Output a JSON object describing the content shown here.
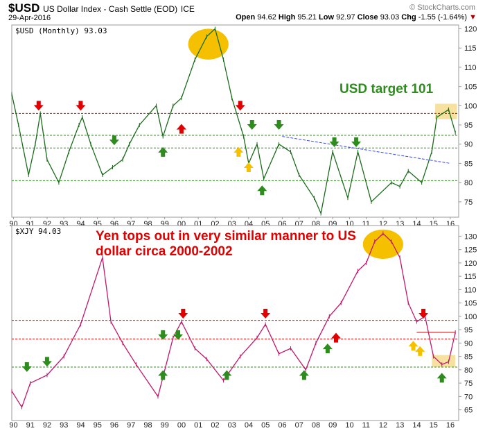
{
  "header": {
    "symbol": "$USD",
    "name": "US Dollar Index - Cash Settle (EOD)",
    "exchange": "ICE",
    "date": "29-Apr-2016",
    "open_label": "Open",
    "open": "94.62",
    "high_label": "High",
    "high": "95.21",
    "low_label": "Low",
    "low": "92.97",
    "close_label": "Close",
    "close": "93.03",
    "chg_label": "Chg",
    "chg": "-1.55 (-1.64%)",
    "watermark": "© StockCharts.com"
  },
  "colors": {
    "usd": "#1a6b1a",
    "xjy": "#c0186a",
    "orange": "#f5c000",
    "red": "#e00000",
    "green": "#2e8b1e",
    "yellow": "#f5c000",
    "blue": "#3344ff"
  },
  "chart_data": [
    {
      "type": "line",
      "title": "$USD (Monthly) 93.03",
      "annotation": "USD target 101",
      "ylim": [
        71,
        121
      ],
      "xlim": [
        1989.9,
        2016.5
      ],
      "yticks": [
        75,
        80,
        85,
        90,
        95,
        100,
        105,
        110,
        115,
        120
      ],
      "xticks": [
        "90",
        "91",
        "92",
        "93",
        "94",
        "95",
        "96",
        "97",
        "98",
        "99",
        "00",
        "01",
        "02",
        "03",
        "04",
        "05",
        "06",
        "07",
        "08",
        "09",
        "10",
        "11",
        "12",
        "13",
        "14",
        "15",
        "16"
      ],
      "x": [
        1989.9,
        1990.3,
        1990.9,
        1991.3,
        1991.6,
        1992.0,
        1992.7,
        1993.3,
        1993.9,
        1994.1,
        1994.6,
        1995.3,
        1995.9,
        1996.5,
        1996.9,
        1997.5,
        1998.5,
        1998.9,
        1999.5,
        2000.0,
        2000.8,
        2001.5,
        2002.0,
        2002.5,
        2003.0,
        2003.7,
        2004.0,
        2004.5,
        2004.9,
        2005.8,
        2006.5,
        2007.0,
        2007.9,
        2008.3,
        2009.0,
        2009.9,
        2010.5,
        2011.3,
        2012.5,
        2013.0,
        2013.5,
        2014.3,
        2014.9,
        2015.2,
        2015.9,
        2016.3
      ],
      "values": [
        103,
        95,
        82,
        90,
        98,
        86,
        80,
        88,
        95,
        97,
        90,
        82,
        84,
        86,
        90,
        95,
        100,
        92,
        100,
        102,
        112,
        118,
        120,
        112,
        102,
        92,
        85,
        90,
        81,
        90,
        88,
        82,
        76,
        72,
        88,
        76,
        88,
        75,
        80,
        79,
        83,
        80,
        88,
        97,
        99,
        93
      ],
      "hlines": [
        {
          "value": 98,
          "color": "red"
        },
        {
          "value": 92.3,
          "color": "green"
        },
        {
          "value": 89,
          "color": "green"
        },
        {
          "value": 80.5,
          "color": "green"
        }
      ],
      "trendline": {
        "from": [
          2006,
          92
        ],
        "to": [
          2016,
          85
        ]
      },
      "arrows": [
        {
          "x": 1991.5,
          "y": 100,
          "dir": "down",
          "color": "red"
        },
        {
          "x": 1994.0,
          "y": 100,
          "dir": "down",
          "color": "red"
        },
        {
          "x": 2003.5,
          "y": 100,
          "dir": "down",
          "color": "red"
        },
        {
          "x": 2000.0,
          "y": 94,
          "dir": "up",
          "color": "red"
        },
        {
          "x": 1996.0,
          "y": 91,
          "dir": "down",
          "color": "green"
        },
        {
          "x": 2004.2,
          "y": 95,
          "dir": "down",
          "color": "green"
        },
        {
          "x": 2005.8,
          "y": 95,
          "dir": "down",
          "color": "green"
        },
        {
          "x": 2009.1,
          "y": 90.5,
          "dir": "down",
          "color": "green"
        },
        {
          "x": 2010.4,
          "y": 90.5,
          "dir": "down",
          "color": "green"
        },
        {
          "x": 1998.9,
          "y": 88,
          "dir": "up",
          "color": "green"
        },
        {
          "x": 2004.8,
          "y": 78,
          "dir": "up",
          "color": "green"
        },
        {
          "x": 2003.4,
          "y": 88,
          "dir": "up",
          "color": "yellow"
        },
        {
          "x": 2004.0,
          "y": 84,
          "dir": "up",
          "color": "yellow"
        }
      ],
      "highlights": [
        {
          "shape": "ellipse",
          "x": 2001.6,
          "y": 116,
          "rx": 1.2,
          "ry": 4
        },
        {
          "shape": "box",
          "x": [
            2015.1,
            2016.4
          ],
          "y": [
            96.5,
            100.5
          ]
        }
      ]
    },
    {
      "type": "line",
      "title": "$XJY 94.03",
      "annotation": "Yen tops out in very similar manner to US dollar circa 2000-2002",
      "ylim": [
        61,
        134
      ],
      "xlim": [
        1989.9,
        2016.5
      ],
      "yticks": [
        65,
        70,
        75,
        80,
        85,
        90,
        95,
        100,
        105,
        110,
        115,
        120,
        125,
        130
      ],
      "x": [
        1989.9,
        1990.5,
        1991.0,
        1992.0,
        1993.0,
        1994.0,
        1995.3,
        1995.8,
        1996.5,
        1997.3,
        1998.6,
        1999.5,
        2000.0,
        2000.8,
        2001.5,
        2002.5,
        2003.5,
        2004.5,
        2005.0,
        2005.8,
        2006.5,
        2007.4,
        2008.0,
        2008.8,
        2009.5,
        2010.5,
        2011.0,
        2011.5,
        2012.0,
        2012.5,
        2013.0,
        2013.5,
        2014.0,
        2014.5,
        2015.0,
        2015.5,
        2015.9,
        2016.3
      ],
      "values": [
        72,
        66,
        75,
        78,
        85,
        97,
        122,
        98,
        90,
        82,
        70,
        92,
        98,
        88,
        84,
        76,
        85,
        92,
        97,
        86,
        88,
        80,
        90,
        100,
        105,
        117,
        120,
        128,
        131,
        128,
        122,
        105,
        98,
        100,
        85,
        82,
        83,
        94
      ],
      "hlines": [
        {
          "value": 98.5,
          "color": "red"
        },
        {
          "value": 91.5,
          "color": "red"
        },
        {
          "value": 81,
          "color": "green"
        }
      ],
      "arrows": [
        {
          "x": 1990.8,
          "y": 81,
          "dir": "down",
          "color": "green"
        },
        {
          "x": 1992.0,
          "y": 83,
          "dir": "down",
          "color": "green"
        },
        {
          "x": 1998.9,
          "y": 93,
          "dir": "down",
          "color": "green"
        },
        {
          "x": 1999.8,
          "y": 93,
          "dir": "down",
          "color": "green"
        },
        {
          "x": 1998.9,
          "y": 78,
          "dir": "up",
          "color": "green"
        },
        {
          "x": 2002.7,
          "y": 78,
          "dir": "up",
          "color": "green"
        },
        {
          "x": 2007.3,
          "y": 78,
          "dir": "up",
          "color": "green"
        },
        {
          "x": 2008.7,
          "y": 88,
          "dir": "up",
          "color": "green"
        },
        {
          "x": 2015.5,
          "y": 77,
          "dir": "up",
          "color": "green"
        },
        {
          "x": 2000.1,
          "y": 101,
          "dir": "down",
          "color": "red"
        },
        {
          "x": 2005.0,
          "y": 101,
          "dir": "down",
          "color": "red"
        },
        {
          "x": 2014.4,
          "y": 101,
          "dir": "down",
          "color": "red"
        },
        {
          "x": 2009.2,
          "y": 92,
          "dir": "up",
          "color": "red"
        },
        {
          "x": 2013.8,
          "y": 89,
          "dir": "up",
          "color": "yellow"
        },
        {
          "x": 2014.2,
          "y": 87,
          "dir": "up",
          "color": "yellow"
        }
      ],
      "highlights": [
        {
          "shape": "ellipse",
          "x": 2012.0,
          "y": 127,
          "rx": 1.2,
          "ry": 5.5
        },
        {
          "shape": "box",
          "x": [
            2014.9,
            2016.3
          ],
          "y": [
            81,
            85.5
          ]
        }
      ],
      "resistance": {
        "value": 94,
        "from": 2014.0,
        "to": 2016.3
      }
    }
  ]
}
